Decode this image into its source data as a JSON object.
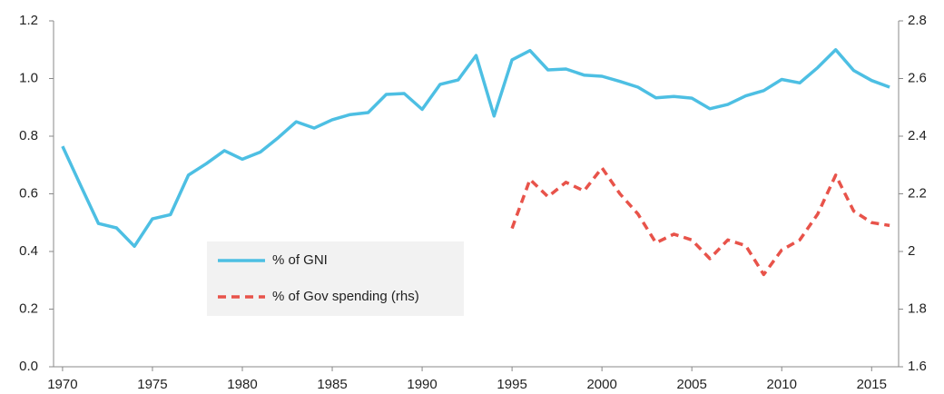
{
  "chart_data": {
    "type": "line",
    "x": [
      1970,
      1971,
      1972,
      1973,
      1974,
      1975,
      1976,
      1977,
      1978,
      1979,
      1980,
      1981,
      1982,
      1983,
      1984,
      1985,
      1986,
      1987,
      1988,
      1989,
      1990,
      1991,
      1992,
      1993,
      1994,
      1995,
      1996,
      1997,
      1998,
      1999,
      2000,
      2001,
      2002,
      2003,
      2004,
      2005,
      2006,
      2007,
      2008,
      2009,
      2010,
      2011,
      2012,
      2013,
      2014,
      2015,
      2016
    ],
    "series": [
      {
        "name": "% of GNI",
        "color": "#4dbfe3",
        "dashed": false,
        "values": [
          0.765,
          0.63,
          0.497,
          0.482,
          0.418,
          0.513,
          0.528,
          0.665,
          0.705,
          0.75,
          0.72,
          0.745,
          0.795,
          0.85,
          0.828,
          0.857,
          0.875,
          0.882,
          0.945,
          0.948,
          0.893,
          0.98,
          0.995,
          1.08,
          0.87,
          1.065,
          1.097,
          1.03,
          1.033,
          1.012,
          1.008,
          0.99,
          0.97,
          0.933,
          0.938,
          0.932,
          0.895,
          0.91,
          0.94,
          0.958,
          0.997,
          0.985,
          1.038,
          1.1,
          1.028,
          0.993,
          0.97
        ]
      },
      {
        "name": "% of Gov spending (rhs)",
        "color": "#e8534a",
        "dashed": true,
        "axis": "y2",
        "values": [
          null,
          null,
          null,
          null,
          null,
          null,
          null,
          null,
          null,
          null,
          null,
          null,
          null,
          null,
          null,
          null,
          null,
          null,
          null,
          null,
          null,
          null,
          null,
          null,
          null,
          2.08,
          2.25,
          2.19,
          2.24,
          2.21,
          2.29,
          2.2,
          2.13,
          2.03,
          2.06,
          2.04,
          1.975,
          2.04,
          2.02,
          1.92,
          2.005,
          2.04,
          2.13,
          2.265,
          2.14,
          2.1,
          2.09
        ]
      }
    ],
    "xlim": [
      1969.5,
      2016.5
    ],
    "xticks": [
      1970,
      1975,
      1980,
      1985,
      1990,
      1995,
      2000,
      2005,
      2010,
      2015
    ],
    "ylim": [
      0,
      1.2
    ],
    "yticks": [
      {
        "value": 0,
        "label": "0.0"
      },
      0.2,
      0.4,
      0.6,
      0.8,
      {
        "value": 1,
        "label": "1.0"
      },
      1.2
    ],
    "y2lim": [
      1.6,
      2.8
    ],
    "y2ticks": [
      1.6,
      1.8,
      2,
      2.2,
      2.4,
      2.6,
      2.8
    ]
  }
}
